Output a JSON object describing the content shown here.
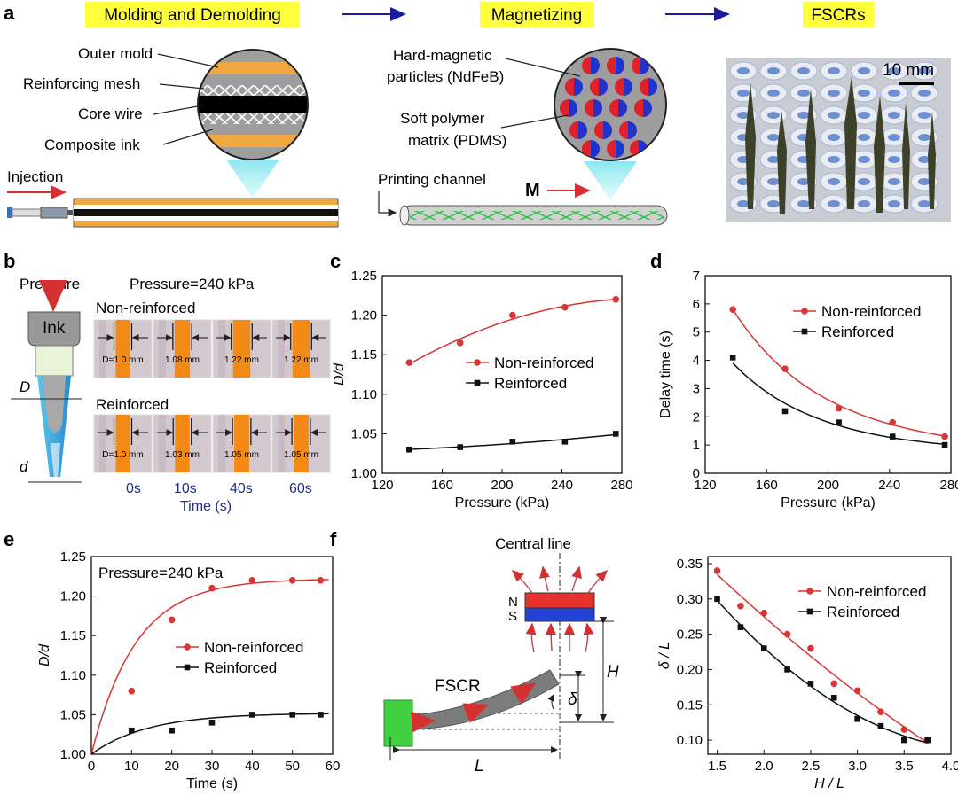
{
  "panel_a": {
    "panel_label": "a",
    "stage1": "Molding and Demolding",
    "stage2": "Magnetizing",
    "stage3": "FSCRs",
    "mold_labels": [
      "Outer mold",
      "Reinforcing mesh",
      "Core wire",
      "Composite ink"
    ],
    "injection": "Injection",
    "magnet_labels": [
      "Hard-magnetic",
      "particles (NdFeB)",
      "Soft polymer",
      "matrix (PDMS)"
    ],
    "printing_channel": "Printing channel",
    "field_label": "M",
    "scale_bar": "10 mm",
    "colors": {
      "banner": "#ffff3c",
      "arrow": "#1a1a9e",
      "mold": "#f0a840",
      "magnet_red": "#e0202a",
      "magnet_blue": "#2233cc"
    }
  },
  "panel_b": {
    "panel_label": "b",
    "pressure_label": "Pressure",
    "ink_label": "Ink",
    "big_d": "D",
    "small_d": "d",
    "condition": "Pressure=240 kPa",
    "non_reinforced": "Non-reinforced",
    "reinforced": "Reinforced",
    "nr_values": [
      "D=1.0 mm",
      "1.08 mm",
      "1.22 mm",
      "1.22 mm"
    ],
    "r_values": [
      "D=1.0 mm",
      "1.03 mm",
      "1.05 mm",
      "1.05 mm"
    ],
    "times": [
      "0s",
      "10s",
      "40s",
      "60s"
    ],
    "nr_widths": [
      1.0,
      1.08,
      1.22,
      1.22
    ],
    "r_widths": [
      1.0,
      1.03,
      1.05,
      1.05
    ],
    "xlabel": "Time (s)"
  },
  "chart_data": [
    {
      "panel": "c",
      "type": "scatter",
      "xlabel": "Pressure (kPa)",
      "ylabel": "D/d",
      "xlim": [
        120,
        280
      ],
      "ylim": [
        1.0,
        1.25
      ],
      "xticks": [
        "120",
        "160",
        "200",
        "240",
        "280"
      ],
      "yticks": [
        "1.00",
        "1.05",
        "1.10",
        "1.15",
        "1.20",
        "1.25"
      ],
      "legend": "center-right",
      "series": [
        {
          "name": "Non-reinforced",
          "color": "#d93535",
          "marker": "circle",
          "x": [
            138,
            172,
            207,
            242,
            276
          ],
          "y": [
            1.14,
            1.165,
            1.2,
            1.21,
            1.22
          ]
        },
        {
          "name": "Reinforced",
          "color": "#111111",
          "marker": "square",
          "x": [
            138,
            172,
            207,
            242,
            276
          ],
          "y": [
            1.03,
            1.033,
            1.04,
            1.04,
            1.05
          ]
        }
      ]
    },
    {
      "panel": "d",
      "type": "scatter",
      "xlabel": "Pressure (kPa)",
      "ylabel": "Delay time (s)",
      "xlim": [
        120,
        280
      ],
      "ylim": [
        0,
        7
      ],
      "xticks": [
        "120",
        "160",
        "200",
        "240",
        "280"
      ],
      "yticks": [
        "0",
        "1",
        "2",
        "3",
        "4",
        "5",
        "6",
        "7"
      ],
      "legend": "top-right",
      "series": [
        {
          "name": "Non-reinforced",
          "color": "#d93535",
          "marker": "circle",
          "x": [
            138,
            172,
            207,
            242,
            276
          ],
          "y": [
            5.8,
            3.7,
            2.3,
            1.8,
            1.3
          ]
        },
        {
          "name": "Reinforced",
          "color": "#111111",
          "marker": "square",
          "x": [
            138,
            172,
            207,
            242,
            276
          ],
          "y": [
            4.1,
            2.2,
            1.8,
            1.3,
            1.0
          ]
        }
      ]
    },
    {
      "panel": "e",
      "type": "scatter",
      "annotation": "Pressure=240 kPa",
      "xlabel": "Time (s)",
      "ylabel": "D/d",
      "xlim": [
        0,
        60
      ],
      "ylim": [
        1.0,
        1.25
      ],
      "xticks": [
        "0",
        "10",
        "20",
        "30",
        "40",
        "50",
        "60"
      ],
      "yticks": [
        "1.00",
        "1.05",
        "1.10",
        "1.15",
        "1.20",
        "1.25"
      ],
      "legend": "center-right",
      "series": [
        {
          "name": "Non-reinforced",
          "color": "#d93535",
          "marker": "circle",
          "x": [
            10,
            20,
            30,
            40,
            50,
            57
          ],
          "y": [
            1.08,
            1.17,
            1.21,
            1.22,
            1.22,
            1.22
          ]
        },
        {
          "name": "Reinforced",
          "color": "#111111",
          "marker": "square",
          "x": [
            10,
            20,
            30,
            40,
            50,
            57
          ],
          "y": [
            1.03,
            1.03,
            1.04,
            1.05,
            1.05,
            1.05
          ]
        }
      ]
    },
    {
      "panel": "f",
      "type": "scatter",
      "xlabel": "H / L",
      "ylabel": "δ / L",
      "xlim": [
        1.4,
        4.0
      ],
      "ylim": [
        0.08,
        0.36
      ],
      "xticks": [
        "1.5",
        "2.0",
        "2.5",
        "3.0",
        "3.5",
        "4.0"
      ],
      "yticks": [
        "0.10",
        "0.15",
        "0.20",
        "0.25",
        "0.30",
        "0.35"
      ],
      "legend": "top-right",
      "series": [
        {
          "name": "Non-reinforced",
          "color": "#d93535",
          "marker": "circle",
          "x": [
            1.5,
            1.75,
            2.0,
            2.25,
            2.5,
            2.75,
            3.0,
            3.25,
            3.5,
            3.75
          ],
          "y": [
            0.34,
            0.29,
            0.28,
            0.25,
            0.23,
            0.18,
            0.17,
            0.14,
            0.115,
            0.1
          ]
        },
        {
          "name": "Reinforced",
          "color": "#111111",
          "marker": "square",
          "x": [
            1.5,
            1.75,
            2.0,
            2.25,
            2.5,
            2.75,
            3.0,
            3.25,
            3.5,
            3.75
          ],
          "y": [
            0.3,
            0.26,
            0.23,
            0.2,
            0.18,
            0.16,
            0.13,
            0.12,
            0.1,
            0.1
          ]
        }
      ]
    }
  ],
  "panel_c": {
    "panel_label": "c"
  },
  "panel_d": {
    "panel_label": "d"
  },
  "panel_e": {
    "panel_label": "e"
  },
  "panel_f": {
    "panel_label": "f",
    "central_line": "Central line",
    "north": "N",
    "south": "S",
    "fscr": "FSCR",
    "big_h": "H",
    "big_l": "L",
    "delta": "δ"
  }
}
